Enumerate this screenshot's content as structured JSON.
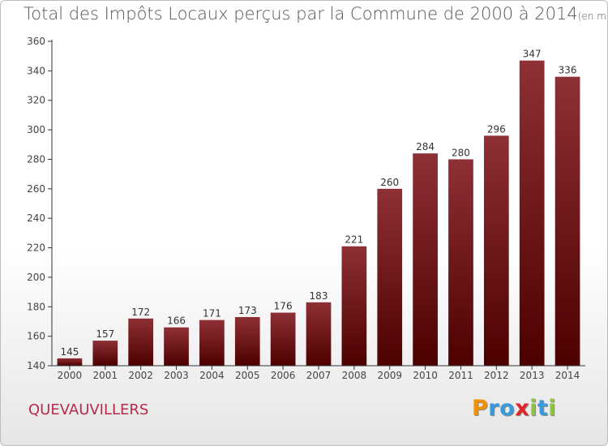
{
  "title": "Total des Impôts Locaux perçus par la Commune de 2000 à 2014",
  "title_unit": "(en milliers d'€)",
  "commune": "QUEVAUVILLERS",
  "logo": {
    "text": "Proxiti",
    "letters": [
      "P",
      "r",
      "o",
      "x",
      "i",
      "t",
      "i"
    ],
    "colors": [
      "#f39200",
      "#3a9ad9",
      "#3a9ad9",
      "#e3242b",
      "#8cc63f",
      "#3a9ad9",
      "#8cc63f"
    ]
  },
  "chart_data": {
    "type": "bar",
    "categories": [
      "2000",
      "2001",
      "2002",
      "2003",
      "2004",
      "2005",
      "2006",
      "2007",
      "2008",
      "2009",
      "2010",
      "2011",
      "2012",
      "2013",
      "2014"
    ],
    "values": [
      145,
      157,
      172,
      166,
      171,
      173,
      176,
      183,
      221,
      260,
      284,
      280,
      296,
      347,
      336
    ],
    "ylim": [
      140,
      360
    ],
    "yticks": [
      140,
      160,
      180,
      200,
      220,
      240,
      260,
      280,
      300,
      320,
      340,
      360
    ],
    "grid": false,
    "bar_color": "#7a1a1d"
  }
}
